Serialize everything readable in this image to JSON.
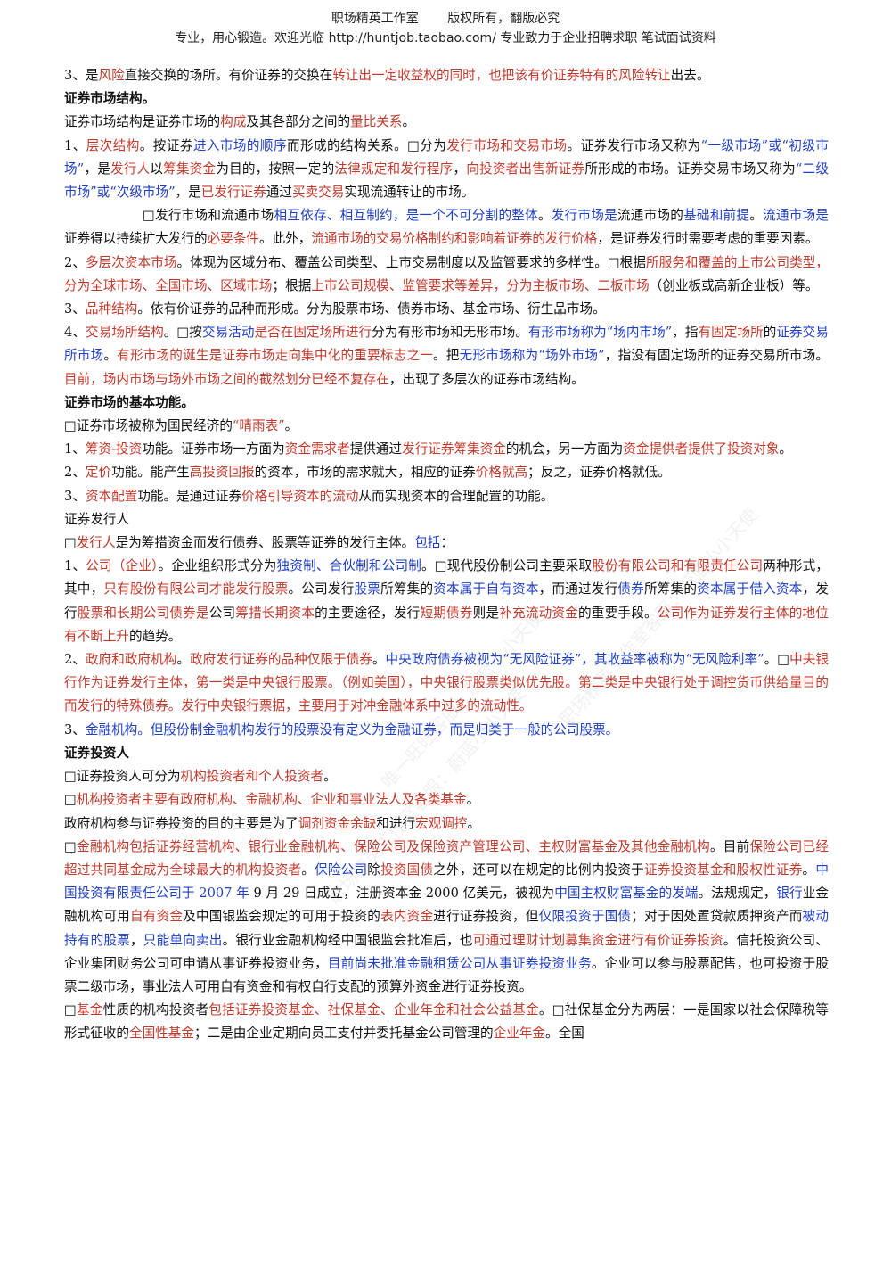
{
  "header": {
    "studio": "职场精英工作室",
    "rights": "版权所有，翻版必究",
    "tagline": "专业，用心锻造。欢迎光临 http://huntjob.taobao.com/ 专业致力于企业招聘求职 笔试面试资料"
  },
  "watermarks": [
    "职场精英工作室客服：蔚蓝小小天使",
    "唯一旺旺客服：蔚蓝小小天使",
    "职场精英工作室客服：蔚蓝小小天使"
  ],
  "paragraphs": [
    {
      "cls": "",
      "spans": [
        [
          "",
          "3、是"
        ],
        [
          "r",
          "风险"
        ],
        [
          "",
          "直接交换的场所。有价证券的交换在"
        ],
        [
          "r",
          "转让出一定收益权的同时，也把该有价证券特有的风险转让"
        ],
        [
          "",
          "出去。"
        ]
      ]
    },
    {
      "cls": "h",
      "spans": [
        [
          "",
          "证券市场结构。"
        ]
      ]
    },
    {
      "cls": "",
      "spans": [
        [
          "",
          "证券市场结构是证券市场的"
        ],
        [
          "r",
          "构成"
        ],
        [
          "",
          "及其各部分之间的"
        ],
        [
          "r",
          "量比关系"
        ],
        [
          "",
          "。"
        ]
      ]
    },
    {
      "cls": "",
      "spans": [
        [
          "",
          "1、"
        ],
        [
          "r",
          "层次结构"
        ],
        [
          "",
          "。按证券"
        ],
        [
          "b",
          "进入市场的顺序"
        ],
        [
          "",
          "而形成的结构关系。□分为"
        ],
        [
          "r",
          "发行市场和交易市场"
        ],
        [
          "",
          "。证券发行市场又称为"
        ],
        [
          "b",
          "“一级市场”或“初级市场”"
        ],
        [
          "",
          "，是"
        ],
        [
          "r",
          "发行人"
        ],
        [
          "",
          "以"
        ],
        [
          "r",
          "筹集资金"
        ],
        [
          "",
          "为目的，按照一定的"
        ],
        [
          "r",
          "法律规定和发行程序"
        ],
        [
          "",
          "，"
        ],
        [
          "r",
          "向投资者出售新证券"
        ],
        [
          "",
          "所形成的市场。证券交易市场又称为"
        ],
        [
          "b",
          "“二级市场”或“次级市场”"
        ],
        [
          "",
          "，是"
        ],
        [
          "r",
          "已发行证券"
        ],
        [
          "",
          "通过"
        ],
        [
          "r",
          "买卖交易"
        ],
        [
          "",
          "实现流通转让的市场。"
        ]
      ]
    },
    {
      "cls": "ind",
      "spans": [
        [
          "",
          "□发行市场和流通市场"
        ],
        [
          "b",
          "相互依存、相互制约，是一个不可分割的整体"
        ],
        [
          "",
          "。"
        ],
        [
          "b",
          "发行市场是"
        ],
        [
          "",
          "流通市场的"
        ],
        [
          "b",
          "基础和前提"
        ],
        [
          "",
          "。"
        ],
        [
          "b",
          "流通市场是"
        ],
        [
          "",
          "证券得以持续扩大发行的"
        ],
        [
          "r",
          "必要条件"
        ],
        [
          "",
          "。此外，"
        ],
        [
          "r",
          "流通市场的交易价格制约和影响着证券的发行价格"
        ],
        [
          "",
          "，是证券发行时需要考虑的重要因素。"
        ]
      ]
    },
    {
      "cls": "",
      "spans": [
        [
          "",
          "2、"
        ],
        [
          "r",
          "多层次资本市场"
        ],
        [
          "",
          "。体现为区域分布、覆盖公司类型、上市交易制度以及监管要求的多样性。□根据"
        ],
        [
          "r",
          "所服务和覆盖的上市公司类型，分为全球市场、全国市场、区域市场"
        ],
        [
          "",
          "；根据"
        ],
        [
          "r",
          "上市公司规模、监管要求等差异，分为主板市场、二板市场"
        ],
        [
          "",
          "（创业板或高新企业板）等。"
        ]
      ]
    },
    {
      "cls": "",
      "spans": [
        [
          "",
          "3、"
        ],
        [
          "r",
          "品种结构"
        ],
        [
          "",
          "。依有价证券的品种而形成。分为股票市场、债券市场、基金市场、衍生品市场。"
        ]
      ]
    },
    {
      "cls": "",
      "spans": [
        [
          "",
          "4、"
        ],
        [
          "r",
          "交易场所结构"
        ],
        [
          "",
          "。□按"
        ],
        [
          "b",
          "交易活动"
        ],
        [
          "r",
          "是否在固定场所进行"
        ],
        [
          "",
          "分为有形市场和无形市场。"
        ],
        [
          "b",
          "有形市场称为“场内市场”"
        ],
        [
          "",
          "，指"
        ],
        [
          "r",
          "有固定场所"
        ],
        [
          "",
          "的"
        ],
        [
          "b",
          "证券交易所市场"
        ],
        [
          "",
          "。"
        ],
        [
          "r",
          "有形市场的诞生是证券市场走向集中化的重要标志之一"
        ],
        [
          "",
          "。把"
        ],
        [
          "b",
          "无形市场称为“场外市场”"
        ],
        [
          "",
          "，指没有固定场所的证券交易所市场。"
        ],
        [
          "r",
          "目前，场内市场与场外市场之间的截然划分已经不复存在"
        ],
        [
          "",
          "，出现了多层次的证券市场结构。"
        ]
      ]
    },
    {
      "cls": "h",
      "spans": [
        [
          "",
          "证券市场的基本功能。"
        ]
      ]
    },
    {
      "cls": "",
      "spans": [
        [
          "",
          "□证券市场被称为国民经济的"
        ],
        [
          "r",
          "“晴雨表”"
        ],
        [
          "",
          "。"
        ]
      ]
    },
    {
      "cls": "",
      "spans": [
        [
          "",
          "1、"
        ],
        [
          "r",
          "筹资-投资"
        ],
        [
          "",
          "功能。证券市场一方面为"
        ],
        [
          "r",
          "资金需求者"
        ],
        [
          "",
          "提供通过"
        ],
        [
          "r",
          "发行证券筹集资金"
        ],
        [
          "",
          "的机会，另一方面为"
        ],
        [
          "r",
          "资金提供者提供了投资对象"
        ],
        [
          "",
          "。"
        ]
      ]
    },
    {
      "cls": "",
      "spans": [
        [
          "",
          "2、"
        ],
        [
          "r",
          "定价"
        ],
        [
          "",
          "功能。能产生"
        ],
        [
          "r",
          "高投资回报"
        ],
        [
          "",
          "的资本，市场的需求就大，相应的证券"
        ],
        [
          "r",
          "价格就高"
        ],
        [
          "",
          "；反之，证券价格就低。"
        ]
      ]
    },
    {
      "cls": "",
      "spans": [
        [
          "",
          "3、"
        ],
        [
          "r",
          "资本配置"
        ],
        [
          "",
          "功能。是通过证券"
        ],
        [
          "r",
          "价格引导资本的流动"
        ],
        [
          "",
          "从而实现资本的合理配置的功能。"
        ]
      ]
    },
    {
      "cls": "",
      "spans": [
        [
          "",
          "证券发行人"
        ]
      ]
    },
    {
      "cls": "",
      "spans": [
        [
          "",
          "□"
        ],
        [
          "r",
          "发行人"
        ],
        [
          "",
          "是为筹措资金而发行债券、股票等证券的发行主体。"
        ],
        [
          "b",
          "包括"
        ],
        [
          "",
          "："
        ]
      ]
    },
    {
      "cls": "",
      "spans": [
        [
          "",
          "1、"
        ],
        [
          "r",
          "公司（企业）"
        ],
        [
          "",
          "。企业组织形式分为"
        ],
        [
          "b",
          "独资制、合伙制和公司制"
        ],
        [
          "",
          "。□现代股份制公司主要采取"
        ],
        [
          "r",
          "股份有限公司和有限责任公司"
        ],
        [
          "",
          "两种形式，其中，"
        ],
        [
          "r",
          "只有股份有限公司才能发行股票"
        ],
        [
          "",
          "。公司发行"
        ],
        [
          "b",
          "股票"
        ],
        [
          "",
          "所筹集的"
        ],
        [
          "b",
          "资本属于自有资本"
        ],
        [
          "",
          "，而通过发行"
        ],
        [
          "b",
          "债券"
        ],
        [
          "",
          "所筹集的"
        ],
        [
          "b",
          "资本属于借入资本"
        ],
        [
          "",
          "，发行"
        ],
        [
          "r",
          "股票和长期公司债券是"
        ],
        [
          "",
          "公司"
        ],
        [
          "r",
          "筹措长期资本"
        ],
        [
          "",
          "的主要途径，发行"
        ],
        [
          "r",
          "短期债券"
        ],
        [
          "",
          "则是"
        ],
        [
          "r",
          "补充流动资金"
        ],
        [
          "",
          "的重要手段。"
        ],
        [
          "r",
          "公司作为证券发行主体的地位有不断上升"
        ],
        [
          "",
          "的趋势。"
        ]
      ]
    },
    {
      "cls": "",
      "spans": [
        [
          "",
          "2、"
        ],
        [
          "r",
          "政府和政府机构"
        ],
        [
          "",
          "。"
        ],
        [
          "r",
          "政府发行证券的品种仅限于债券"
        ],
        [
          "",
          "。"
        ],
        [
          "b",
          "中央政府债券被视为“无风险证券”，其收益率被称为“无风险利率”"
        ],
        [
          "",
          "。□"
        ],
        [
          "r",
          "中央银行作为证券发行主体，第一类是中央银行股票。（例如美国），中央银行股票类似优先股。第二类是中央银行处于调控货币供给量目的而发行的特殊债券。发行中央银行票据，主要用于对冲金融体系中过多的流动性。"
        ]
      ]
    },
    {
      "cls": "",
      "spans": [
        [
          "",
          "3、"
        ],
        [
          "b",
          "金融机构。但股份制金融机构发行的股票没有定义为金融证券，而是归类于一般的公司股票。"
        ]
      ]
    },
    {
      "cls": "h",
      "spans": [
        [
          "",
          "证券投资人"
        ]
      ]
    },
    {
      "cls": "",
      "spans": [
        [
          "",
          "□证券投资人可分为"
        ],
        [
          "r",
          "机构投资者和个人投资者"
        ],
        [
          "",
          "。"
        ]
      ]
    },
    {
      "cls": "",
      "spans": [
        [
          "",
          "□"
        ],
        [
          "r",
          "机构投资者主要有政府机构、金融机构、企业和事业法人及各类基金"
        ],
        [
          "",
          "。"
        ]
      ]
    },
    {
      "cls": "",
      "spans": [
        [
          "",
          "政府机构参与证券投资的目的主要是为了"
        ],
        [
          "r",
          "调剂资金余缺"
        ],
        [
          "",
          "和进行"
        ],
        [
          "r",
          "宏观调控"
        ],
        [
          "",
          "。"
        ]
      ]
    },
    {
      "cls": "",
      "spans": [
        [
          "",
          "□"
        ],
        [
          "r",
          "金融机构包括证券经营机构、银行业金融机构、保险公司及保险资产管理公司、主权财富基金及其他金融机构"
        ],
        [
          "",
          "。目前"
        ],
        [
          "r",
          "保险公司已经超过共同基金成为全球最大的机构投资者"
        ],
        [
          "",
          "。"
        ],
        [
          "b",
          "保险公司"
        ],
        [
          "",
          "除"
        ],
        [
          "r",
          "投资国债"
        ],
        [
          "",
          "之外，还可以在规定的比例内投资于"
        ],
        [
          "r",
          "证券投资基金和股权性证券"
        ],
        [
          "",
          "。"
        ],
        [
          "b",
          "中国投资有限责任公司于 2007 年"
        ],
        [
          "",
          " 9 月 29 日成立，注册资本金 2000 亿美元，被视为"
        ],
        [
          "b",
          "中国主权财富基金的发端"
        ],
        [
          "",
          "。法规规定，"
        ],
        [
          "b",
          "银行"
        ],
        [
          "",
          "业金融机构可用"
        ],
        [
          "r",
          "自有资金"
        ],
        [
          "",
          "及中国银监会规定的可用于投资的"
        ],
        [
          "r",
          "表内资金"
        ],
        [
          "",
          "进行证券投资，但"
        ],
        [
          "b",
          "仅限投资于国债"
        ],
        [
          "",
          "；对于因处置贷款质押资产而"
        ],
        [
          "b",
          "被动持有的股票"
        ],
        [
          "",
          "，"
        ],
        [
          "b",
          "只能单向卖出"
        ],
        [
          "",
          "。银行业金融机构经中国银监会批准后，也"
        ],
        [
          "r",
          "可通过理财计划募集资金进行有价证券投资"
        ],
        [
          "",
          "。信托投资公司、企业集团财务公司可申请从事证券投资业务，"
        ],
        [
          "b",
          "目前尚未批准金融租赁公司从事证券投资业务"
        ],
        [
          "",
          "。企业可以参与股票配售，也可投资于股票二级市场，事业法人可用自有资金和有权自行支配的预算外资金进行证券投资。"
        ]
      ]
    },
    {
      "cls": "",
      "spans": [
        [
          "",
          "□"
        ],
        [
          "r",
          "基金"
        ],
        [
          "",
          "性质的机构投资者"
        ],
        [
          "r",
          "包括证券投资基金、社保基金、企业年金和社会公益基金"
        ],
        [
          "",
          "。□社保基金分为两层：一是国家以社会保障税等形式征收的"
        ],
        [
          "r",
          "全国性基金"
        ],
        [
          "",
          "；二是由企业定期向员工支付并委托基金公司管理的"
        ],
        [
          "r",
          "企业年金"
        ],
        [
          "",
          "。全国"
        ]
      ]
    }
  ]
}
